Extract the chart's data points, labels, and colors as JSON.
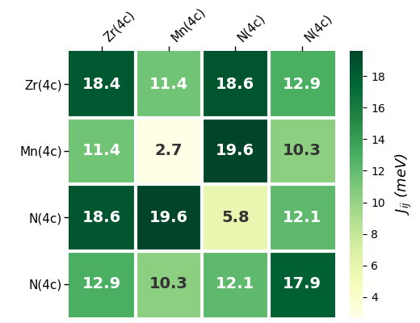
{
  "matrix": [
    [
      18.4,
      11.4,
      18.6,
      12.9
    ],
    [
      11.4,
      2.7,
      19.6,
      10.3
    ],
    [
      18.6,
      19.6,
      5.8,
      12.1
    ],
    [
      12.9,
      10.3,
      12.1,
      17.9
    ]
  ],
  "row_labels": [
    "Zr(4c)",
    "Mn(4c)",
    "N(4c)",
    "N(4c)"
  ],
  "col_labels": [
    "Zr(4c)",
    "Mn(4c)",
    "N(4c)",
    "N(4c)"
  ],
  "cbar_label": "$J_{ij}$ (meV)",
  "vmin": 2.7,
  "vmax": 19.6,
  "cmap": "YlGn",
  "fontsize_annot": 14,
  "fontsize_tick": 11,
  "fontsize_cbar": 13,
  "cbar_ticks": [
    4,
    6,
    8,
    10,
    12,
    14,
    16,
    18
  ],
  "background_color": "#ffffff",
  "linewidth": 3,
  "line_color": "#ffffff",
  "brightness_threshold": 0.65
}
